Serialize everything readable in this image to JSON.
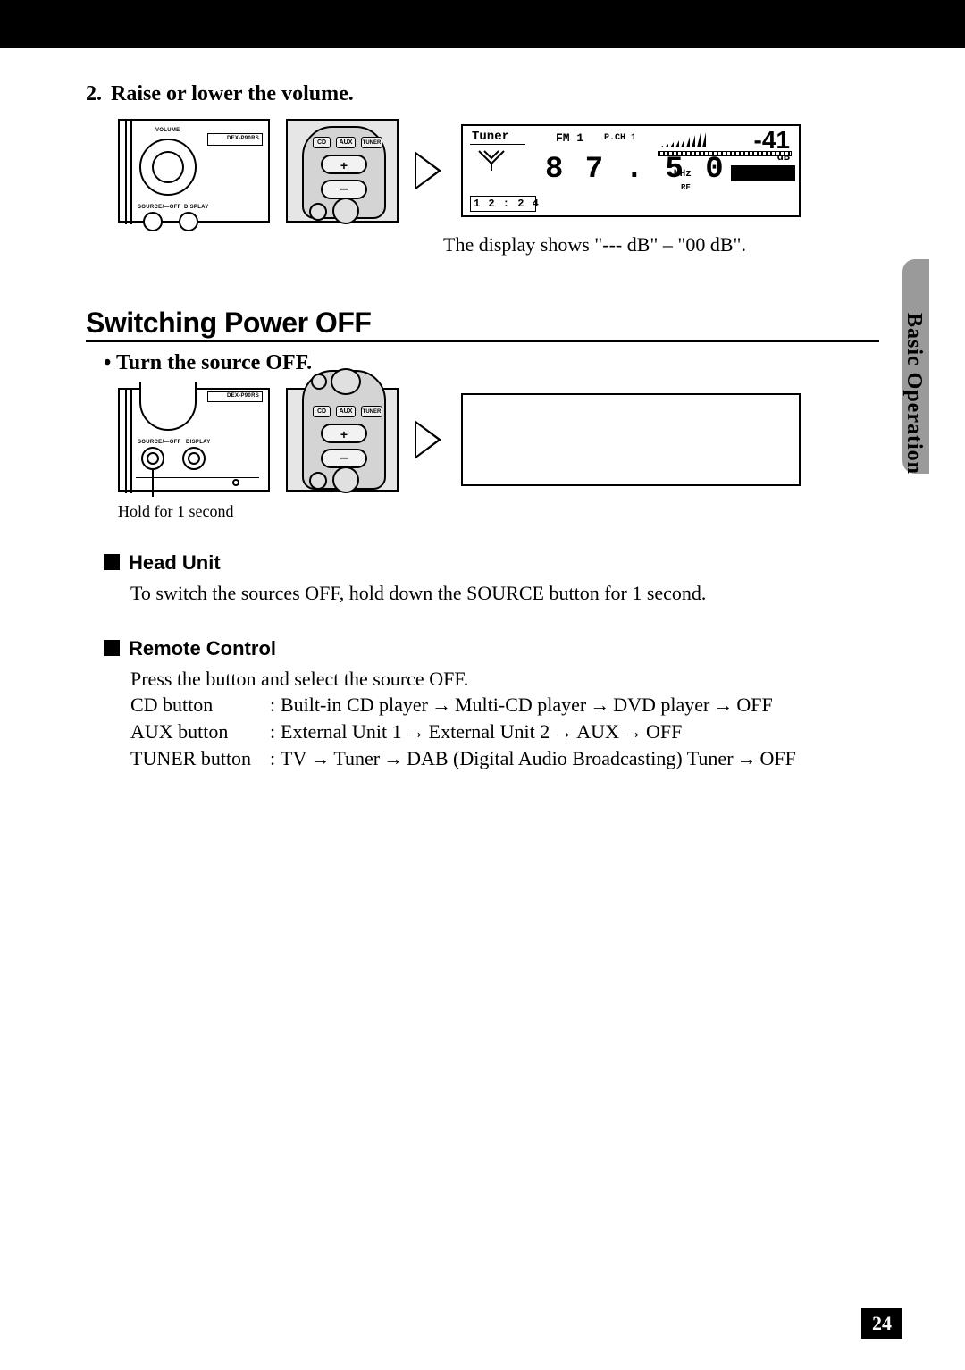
{
  "page_number": "24",
  "side_label": "Basic Operation",
  "step2": {
    "num": "2.",
    "title": "Raise or lower the volume."
  },
  "display_note": "The display shows \"--- dB\" – \"00 dB\".",
  "section_heading": "Switching Power OFF",
  "bullet_heading": "•  Turn the source OFF.",
  "hold_note": "Hold for 1 second",
  "head_unit": {
    "heading": "Head Unit",
    "text": "To switch the sources OFF, hold down the SOURCE button for 1 second."
  },
  "remote_control": {
    "heading": "Remote Control",
    "intro": "Press the button and select the source OFF.",
    "arrow": "→",
    "rows": [
      {
        "label": "CD button",
        "seq": [
          "Built-in CD player",
          "Multi-CD player",
          "DVD player",
          "OFF"
        ]
      },
      {
        "label": "AUX button",
        "seq": [
          "External Unit 1",
          "External Unit 2",
          "AUX",
          "OFF"
        ]
      },
      {
        "label": "TUNER button",
        "seq": [
          "TV",
          "Tuner",
          "DAB (Digital Audio Broadcasting) Tuner",
          "OFF"
        ]
      }
    ]
  },
  "head_unit_panel": {
    "volume_label": "VOLUME",
    "model_label": "DEX-P90RS",
    "source_label": "SOURCE/—OFF",
    "display_label": "DISPLAY"
  },
  "remote_panel": {
    "buttons": [
      "CD",
      "AUX",
      "TUNER"
    ],
    "plus": "+",
    "minus": "–"
  },
  "lcd": {
    "source": "Tuner",
    "band": "FM 1",
    "preset": "P.CH 1",
    "db_value": "-41",
    "db_unit": "dB",
    "freq_major": "8 7 . 5 0",
    "freq_unit": "MHz",
    "rf": "RF",
    "clock": "1 2 : 2 4",
    "colors": {
      "lcd_bg": "#ffffff",
      "lcd_stroke": "#000000",
      "seg_text": "#000000",
      "bar_fill": "#000000"
    }
  }
}
